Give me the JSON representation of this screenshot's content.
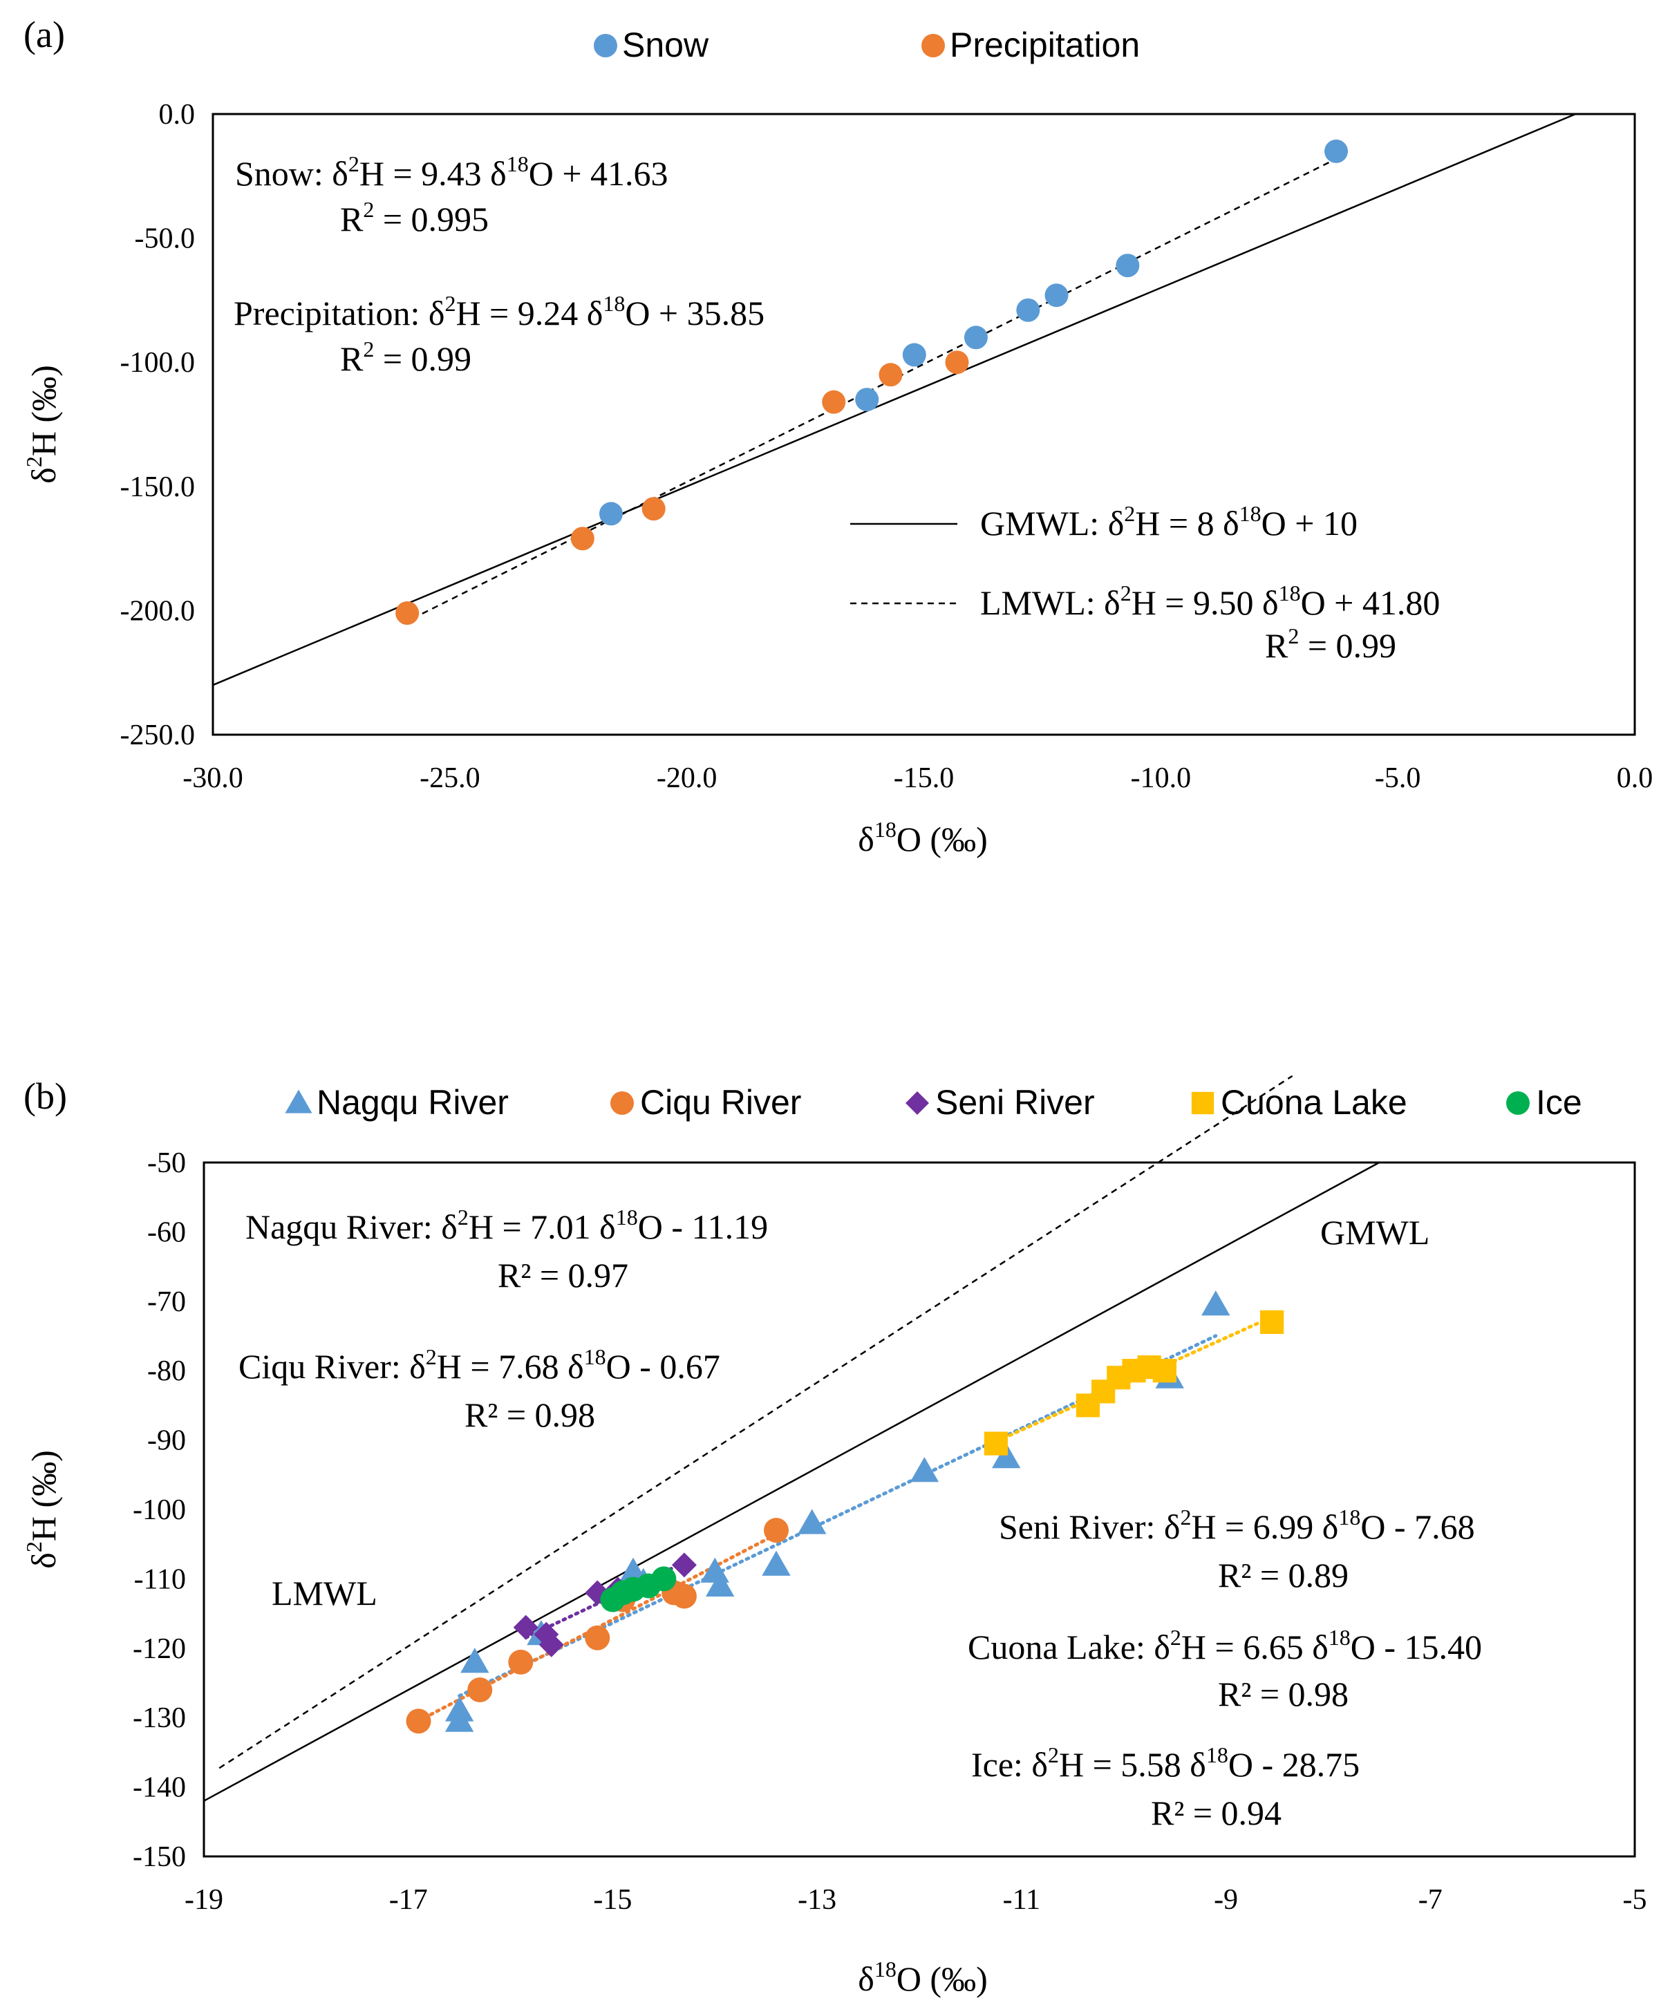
{
  "figure": {
    "panel_a_label": "(a)",
    "panel_b_label": "(b)"
  },
  "chart_data": [
    {
      "id": "a",
      "type": "scatter",
      "title": "",
      "xlabel": "δ18O (‰)",
      "ylabel": "δ2H (‰)",
      "xlim": [
        -30,
        0
      ],
      "ylim": [
        -250,
        0
      ],
      "x_ticks": [
        -30,
        -25,
        -20,
        -15,
        -10,
        -5,
        0
      ],
      "y_ticks": [
        0,
        -50,
        -100,
        -150,
        -200,
        -250
      ],
      "tick_decimals": 1,
      "legend_position": "top",
      "series": [
        {
          "name": "Snow",
          "marker": "circle",
          "color": "#5b9bd5",
          "points": [
            [
              -21.6,
              -161
            ],
            [
              -16.2,
              -115
            ],
            [
              -15.2,
              -97
            ],
            [
              -13.9,
              -90
            ],
            [
              -12.8,
              -79
            ],
            [
              -12.2,
              -73
            ],
            [
              -10.7,
              -61
            ],
            [
              -6.3,
              -15
            ]
          ]
        },
        {
          "name": "Precipitation",
          "marker": "circle",
          "color": "#ed7d31",
          "points": [
            [
              -25.9,
              -201
            ],
            [
              -22.2,
              -171
            ],
            [
              -20.7,
              -159
            ],
            [
              -16.9,
              -116
            ],
            [
              -15.7,
              -105
            ],
            [
              -14.3,
              -100
            ]
          ]
        }
      ],
      "lines": [
        {
          "name": "GMWL",
          "slope": 8,
          "intercept": 10,
          "style": "solid",
          "x_range": [
            -30,
            -1.25
          ]
        },
        {
          "name": "LMWL",
          "slope": 9.5,
          "intercept": 41.8,
          "style": "dashed",
          "x_range": [
            -26,
            -6.3
          ]
        }
      ],
      "annotations": [
        {
          "key": "snow_eq",
          "lines": [
            [
              "Snow:  δ",
              "2",
              "H  = 9.43  δ",
              "18",
              "O + 41.63"
            ],
            [
              "R",
              "2",
              " = 0.995"
            ]
          ]
        },
        {
          "key": "precip_eq",
          "lines": [
            [
              "Precipitation:  δ",
              "2",
              "H  = 9.24  δ",
              "18",
              "O + 35.85"
            ],
            [
              "R",
              "2",
              " = 0.99"
            ]
          ]
        },
        {
          "key": "gmwl_eq",
          "lines": [
            [
              "GMWL:    δ",
              "2",
              "H  = 8  δ",
              "18",
              "O + 10"
            ]
          ]
        },
        {
          "key": "lmwl_eq",
          "lines": [
            [
              "LMWL:    δ",
              "2",
              "H  = 9.50  δ",
              "18",
              "O + 41.80"
            ],
            [
              "R",
              "2",
              " = 0.99"
            ]
          ]
        }
      ]
    },
    {
      "id": "b",
      "type": "scatter",
      "title": "",
      "xlabel": "δ18O (‰)",
      "ylabel": "δ2H (‰)",
      "xlim": [
        -19,
        -5
      ],
      "ylim": [
        -150,
        -50
      ],
      "x_ticks": [
        -19,
        -17,
        -15,
        -13,
        -11,
        -9,
        -7,
        -5
      ],
      "y_ticks": [
        -50,
        -60,
        -70,
        -80,
        -90,
        -100,
        -110,
        -120,
        -130,
        -140,
        -150
      ],
      "tick_decimals": 0,
      "legend_position": "top",
      "series": [
        {
          "name": "Nagqu River",
          "marker": "triangle",
          "color": "#5b9bd5",
          "points": [
            [
              -16.5,
              -129
            ],
            [
              -16.5,
              -130.5
            ],
            [
              -16.35,
              -122
            ],
            [
              -15.7,
              -118
            ],
            [
              -14.8,
              -109
            ],
            [
              -14.7,
              -110.5
            ],
            [
              -14.0,
              -109
            ],
            [
              -13.95,
              -111
            ],
            [
              -13.4,
              -108
            ],
            [
              -13.05,
              -102
            ],
            [
              -11.95,
              -94.5
            ],
            [
              -11.15,
              -92.5
            ],
            [
              -9.55,
              -81
            ],
            [
              -9.1,
              -70.5
            ]
          ],
          "fit": {
            "slope": 7.01,
            "intercept": -11.19,
            "x_range": [
              -16.5,
              -9.1
            ]
          }
        },
        {
          "name": "Ciqu River",
          "marker": "circle",
          "color": "#ed7d31",
          "points": [
            [
              -16.9,
              -130.5
            ],
            [
              -16.3,
              -126
            ],
            [
              -15.9,
              -122
            ],
            [
              -15.15,
              -118.5
            ],
            [
              -14.9,
              -113
            ],
            [
              -14.4,
              -112
            ],
            [
              -14.3,
              -112.5
            ],
            [
              -13.4,
              -103
            ]
          ],
          "fit": {
            "slope": 7.68,
            "intercept": -0.67,
            "x_range": [
              -16.9,
              -13.4
            ]
          }
        },
        {
          "name": "Seni River",
          "marker": "diamond",
          "color": "#7030a0",
          "points": [
            [
              -15.85,
              -117
            ],
            [
              -15.65,
              -118
            ],
            [
              -15.6,
              -119.5
            ],
            [
              -15.15,
              -112
            ],
            [
              -14.95,
              -111.5
            ],
            [
              -14.3,
              -108
            ]
          ],
          "fit": {
            "slope": 6.99,
            "intercept": -7.68,
            "x_range": [
              -15.85,
              -14.3
            ]
          }
        },
        {
          "name": "Cuona Lake",
          "marker": "square",
          "color": "#ffc000",
          "points": [
            [
              -11.25,
              -90.5
            ],
            [
              -10.35,
              -85
            ],
            [
              -10.2,
              -83
            ],
            [
              -10.05,
              -81
            ],
            [
              -9.9,
              -80
            ],
            [
              -9.75,
              -79.5
            ],
            [
              -9.6,
              -80
            ],
            [
              -8.55,
              -73
            ]
          ],
          "fit": {
            "slope": 6.65,
            "intercept": -15.4,
            "x_range": [
              -11.3,
              -8.55
            ]
          }
        },
        {
          "name": "Ice",
          "marker": "circle",
          "color": "#00b050",
          "points": [
            [
              -15.0,
              -113
            ],
            [
              -14.9,
              -112
            ],
            [
              -14.8,
              -111.5
            ],
            [
              -14.65,
              -111
            ],
            [
              -14.5,
              -110
            ]
          ],
          "fit": {
            "slope": 5.58,
            "intercept": -28.75,
            "x_range": [
              -15.0,
              -14.5
            ]
          }
        }
      ],
      "lines": [
        {
          "name": "GMWL",
          "slope": 8,
          "intercept": 10,
          "style": "solid",
          "x_range": [
            -19,
            -7.5
          ]
        },
        {
          "name": "LMWL",
          "slope": 9.5,
          "intercept": 41.8,
          "style": "dashed",
          "x_range": [
            -18.85,
            -8.35
          ]
        }
      ],
      "labels": {
        "gmwl": "GMWL",
        "lmwl": "LMWL"
      },
      "annotations": [
        {
          "key": "nagqu_eq",
          "lines": [
            [
              "Nagqu River:  δ",
              "2",
              "H = 7.01  δ",
              "18",
              "O - 11.19"
            ],
            [
              "R² = 0.97"
            ]
          ]
        },
        {
          "key": "ciqu_eq",
          "lines": [
            [
              "Ciqu River:  δ",
              "2",
              "H = 7.68  δ",
              "18",
              "O - 0.67"
            ],
            [
              "R² = 0.98"
            ]
          ]
        },
        {
          "key": "seni_eq",
          "lines": [
            [
              "Seni River:  δ",
              "2",
              "H = 6.99  δ",
              "18",
              "O - 7.68"
            ],
            [
              "R² = 0.89"
            ]
          ]
        },
        {
          "key": "cuona_eq",
          "lines": [
            [
              "Cuona Lake:  δ",
              "2",
              "H = 6.65  δ",
              "18",
              "O - 15.40"
            ],
            [
              "R² = 0.98"
            ]
          ]
        },
        {
          "key": "ice_eq",
          "lines": [
            [
              "Ice:  δ",
              "2",
              "H  = 5.58  δ",
              "18",
              "O  - 28.75"
            ],
            [
              "R² = 0.94"
            ]
          ]
        }
      ]
    }
  ]
}
